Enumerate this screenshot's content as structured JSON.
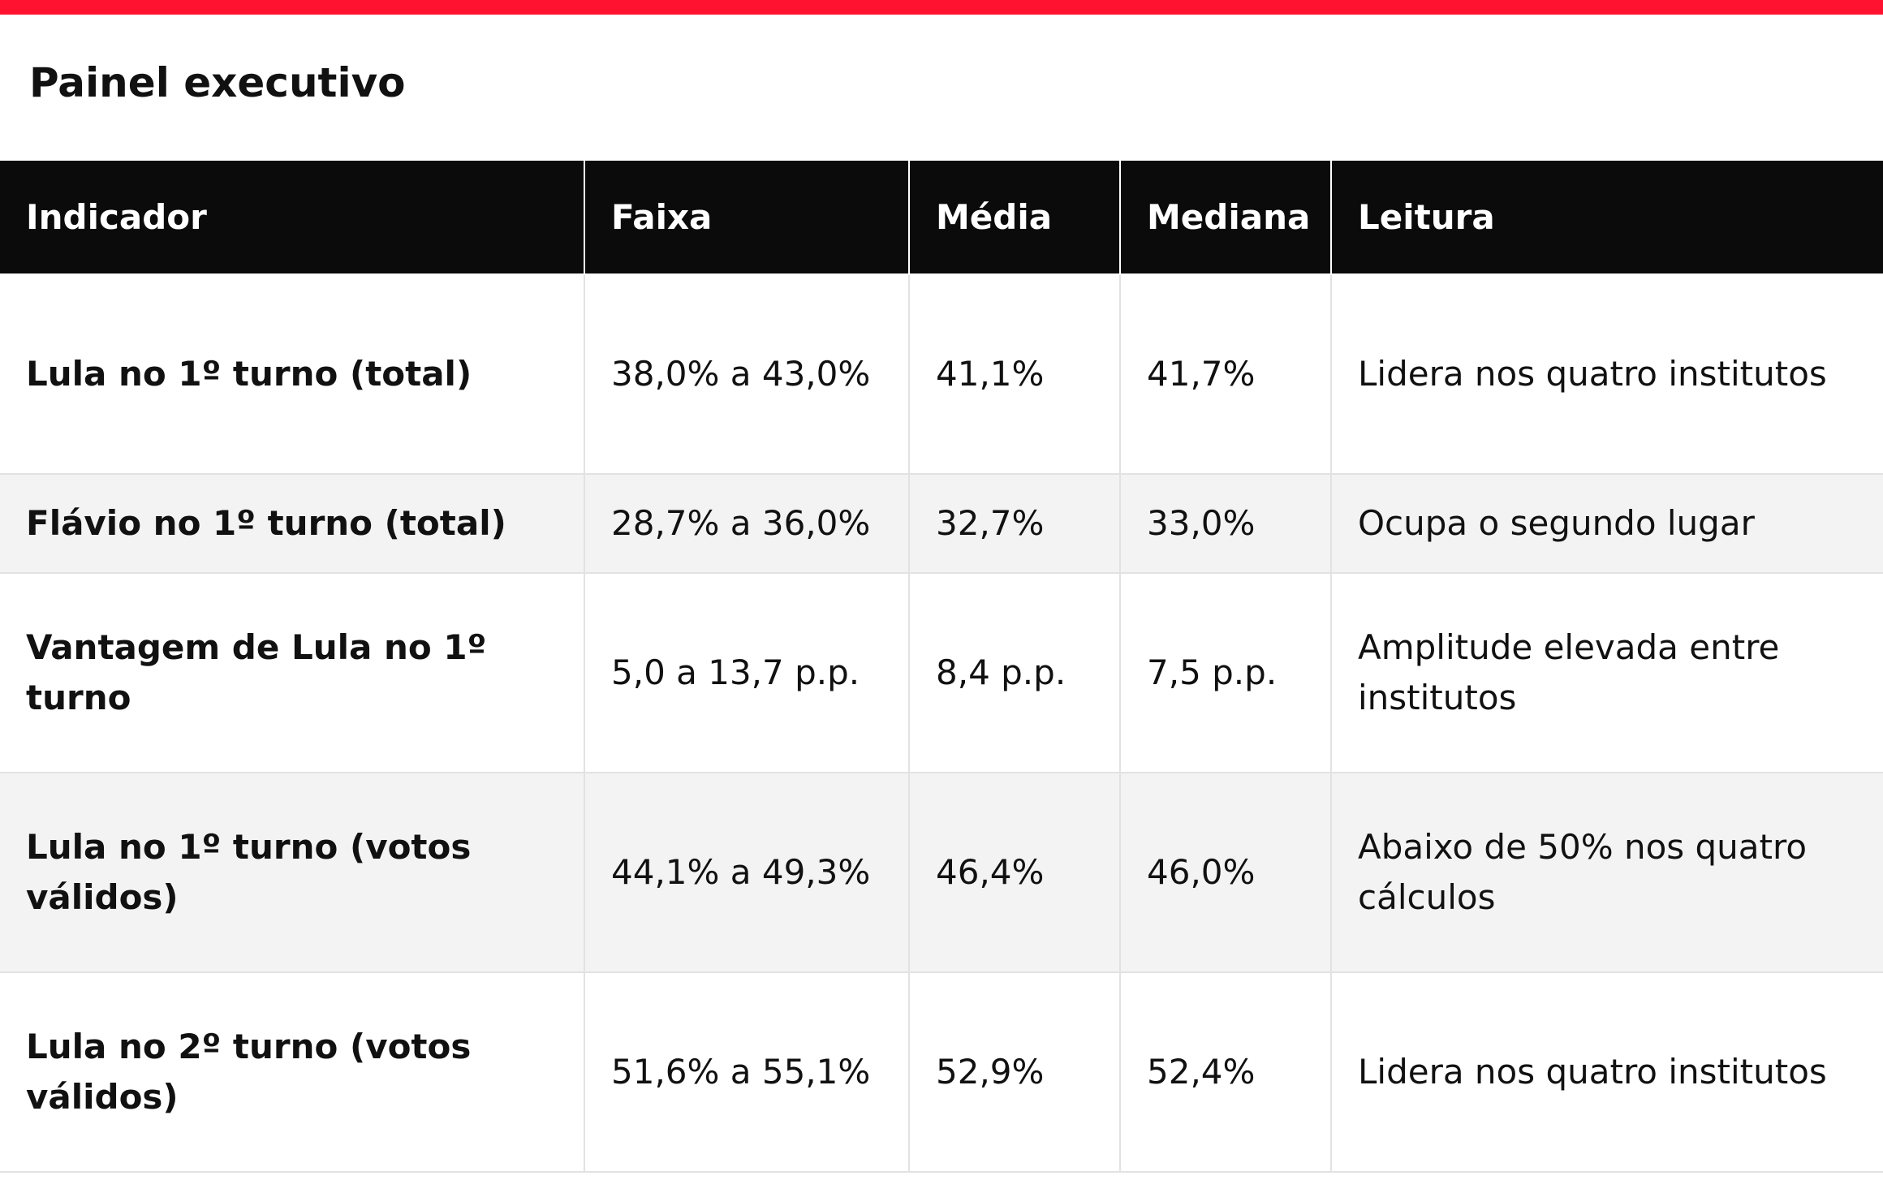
{
  "page": {
    "title": "Painel executivo",
    "accent_color": "#ff1230",
    "header_bg": "#0b0b0b",
    "stripe_bg": "#f3f3f3"
  },
  "table": {
    "headers": [
      "Indicador",
      "Faixa",
      "Média",
      "Mediana",
      "Leitura"
    ],
    "rows": [
      [
        "Lula no 1º turno (total)",
        "38,0% a 43,0%",
        "41,1%",
        "41,7%",
        "Lidera nos quatro institutos"
      ],
      [
        "Flávio no 1º turno (total)",
        "28,7% a 36,0%",
        "32,7%",
        "33,0%",
        "Ocupa o segundo lugar"
      ],
      [
        "Vantagem de Lula no 1º turno",
        "5,0 a 13,7 p.p.",
        "8,4 p.p.",
        "7,5 p.p.",
        "Amplitude elevada entre institutos"
      ],
      [
        "Lula no 1º turno (votos válidos)",
        "44,1% a 49,3%",
        "46,4%",
        "46,0%",
        "Abaixo de 50% nos quatro cálculos"
      ],
      [
        "Lula no 2º turno (votos válidos)",
        "51,6% a 55,1%",
        "52,9%",
        "52,4%",
        "Lidera nos quatro institutos"
      ]
    ]
  }
}
